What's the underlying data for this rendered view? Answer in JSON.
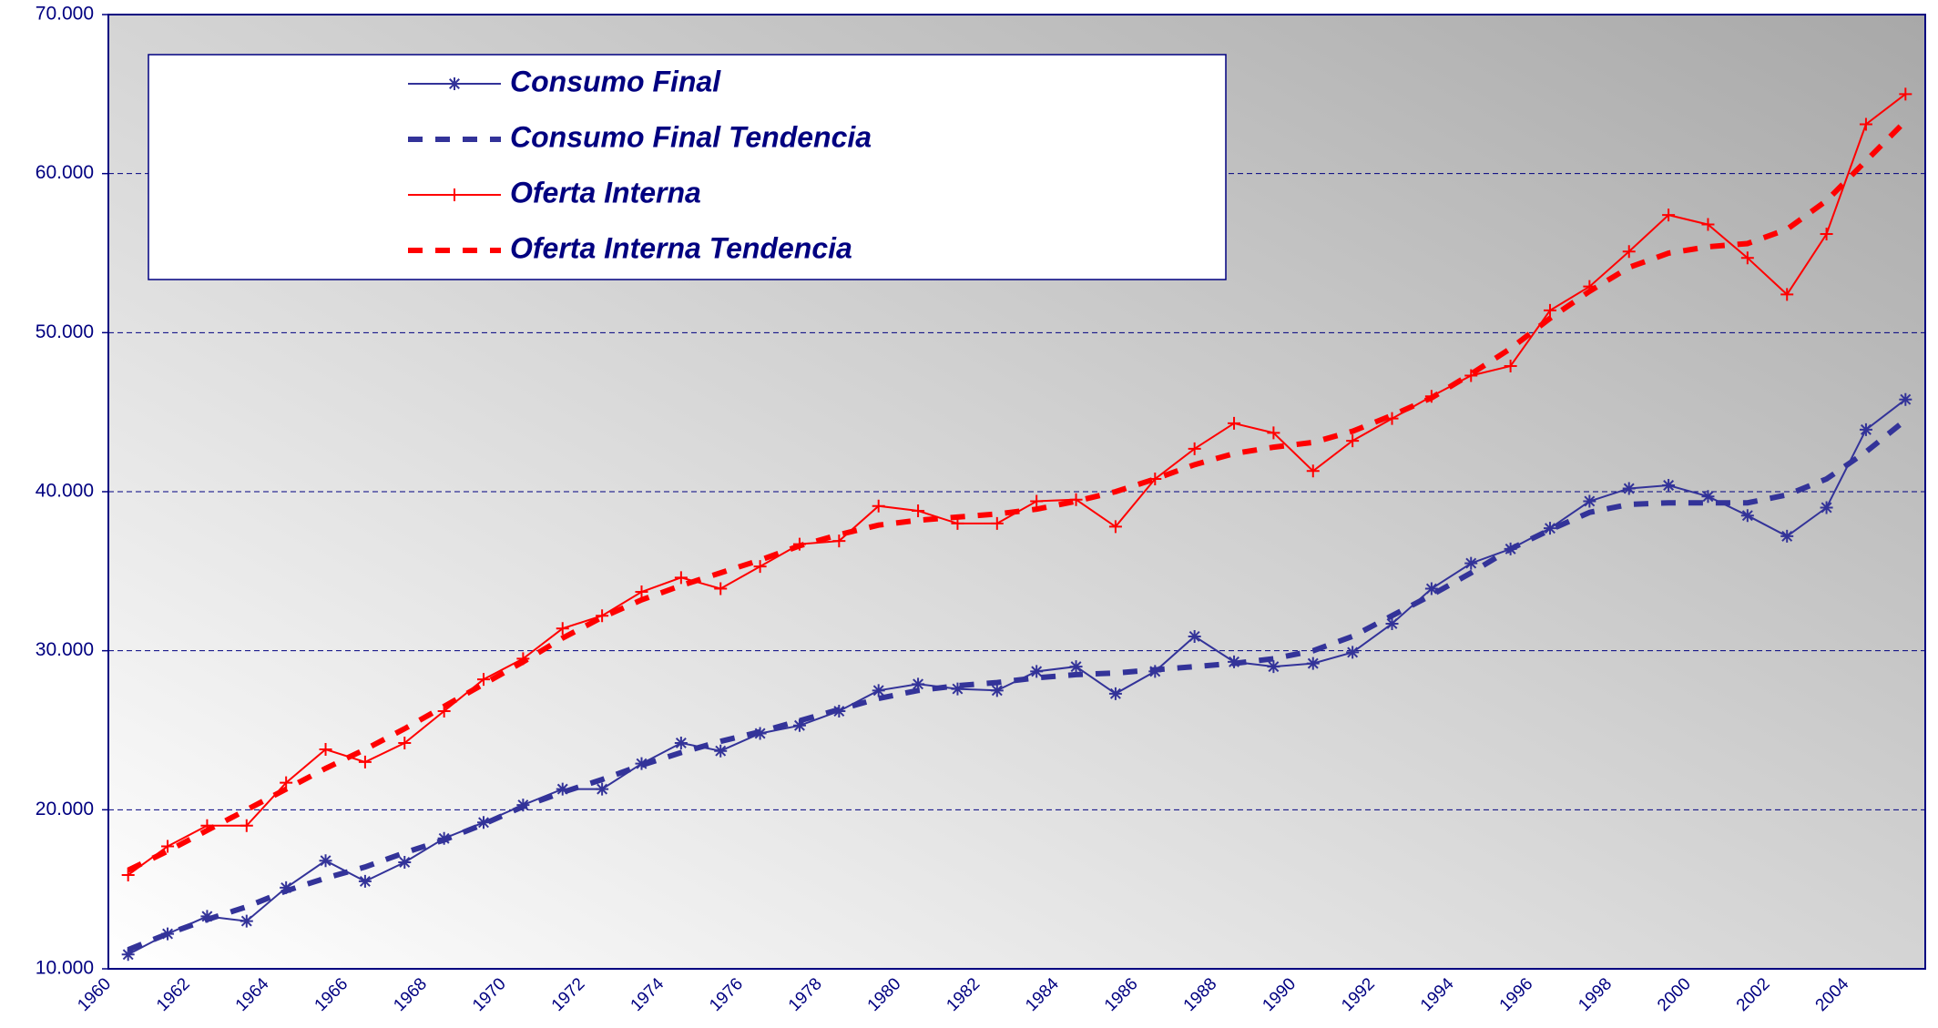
{
  "chart_data": {
    "type": "line",
    "categories": [
      "1960",
      null,
      "1962",
      null,
      "1964",
      null,
      "1966",
      null,
      "1968",
      null,
      "1970",
      null,
      "1972",
      null,
      "1974",
      null,
      "1976",
      null,
      "1978",
      null,
      "1980",
      null,
      "1982",
      null,
      "1984",
      null,
      "1986",
      null,
      "1988",
      null,
      "1990",
      null,
      "1992",
      null,
      "1994",
      null,
      "1996",
      null,
      "1998",
      null,
      "2000",
      null,
      "2002",
      null,
      "2004",
      null
    ],
    "ylim": [
      10000,
      70000
    ],
    "yticks": [
      {
        "value": 10000,
        "label": "10.000"
      },
      {
        "value": 20000,
        "label": "20.000"
      },
      {
        "value": 30000,
        "label": "30.000"
      },
      {
        "value": 40000,
        "label": "40.000"
      },
      {
        "value": 50000,
        "label": "50.000"
      },
      {
        "value": 60000,
        "label": "60.000"
      },
      {
        "value": 70000,
        "label": "70.000"
      }
    ],
    "grid": true,
    "legend": "top-left",
    "series": [
      {
        "name": "Consumo Final",
        "color": "#333399",
        "marker": "asterisk",
        "dashed": false,
        "values": [
          10900,
          12200,
          13300,
          13000,
          15100,
          16800,
          15500,
          16700,
          18200,
          19200,
          20300,
          21300,
          21300,
          22900,
          24200,
          23700,
          24800,
          25300,
          26200,
          27500,
          27900,
          27600,
          27500,
          28700,
          29000,
          27300,
          28700,
          30900,
          29300,
          29000,
          29200,
          29900,
          31700,
          33900,
          35500,
          36400,
          37700,
          39400,
          40200,
          40400,
          39700,
          38500,
          37200,
          39000,
          43900,
          45800
        ]
      },
      {
        "name": "Consumo Final Tendencia",
        "color": "#333399",
        "dashed": true,
        "values": [
          11200,
          12200,
          13100,
          13900,
          14900,
          15700,
          16400,
          17300,
          18100,
          19100,
          20200,
          21100,
          21900,
          22800,
          23600,
          24300,
          24900,
          25600,
          26300,
          27000,
          27500,
          27800,
          28000,
          28300,
          28500,
          28600,
          28800,
          29000,
          29200,
          29500,
          30000,
          30900,
          32200,
          33500,
          34900,
          36400,
          37600,
          38700,
          39200,
          39300,
          39300,
          39300,
          39800,
          40800,
          42500,
          44500
        ]
      },
      {
        "name": "Oferta Interna",
        "color": "#ff0000",
        "marker": "plus",
        "dashed": false,
        "values": [
          15900,
          17700,
          19000,
          19000,
          21700,
          23800,
          23000,
          24200,
          26200,
          28200,
          29500,
          31400,
          32200,
          33700,
          34600,
          33900,
          35300,
          36700,
          36900,
          39100,
          38800,
          38000,
          38000,
          39400,
          39500,
          37800,
          40800,
          42700,
          44300,
          43700,
          41300,
          43200,
          44600,
          46000,
          47300,
          47900,
          51400,
          52900,
          55100,
          57400,
          56800,
          54700,
          52400,
          56200,
          63100,
          65000
        ]
      },
      {
        "name": "Oferta Interna Tendencia",
        "color": "#ff0000",
        "dashed": true,
        "values": [
          16200,
          17400,
          18700,
          20000,
          21300,
          22600,
          23800,
          25100,
          26500,
          27900,
          29300,
          30800,
          32100,
          33200,
          34100,
          34900,
          35700,
          36600,
          37300,
          37900,
          38200,
          38400,
          38600,
          38900,
          39400,
          40000,
          40800,
          41700,
          42400,
          42800,
          43100,
          43800,
          44800,
          45900,
          47400,
          49000,
          50900,
          52600,
          54100,
          55000,
          55400,
          55600,
          56500,
          58300,
          60800,
          63300
        ]
      }
    ]
  }
}
